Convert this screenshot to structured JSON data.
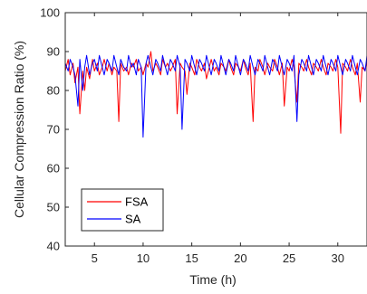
{
  "chart_data": {
    "type": "line",
    "title": "",
    "xlabel": "Time (h)",
    "ylabel": "Cellular Compression Ratio (%)",
    "xlim": [
      2,
      33
    ],
    "ylim": [
      40,
      100
    ],
    "xticks": [
      5,
      10,
      15,
      20,
      25,
      30
    ],
    "yticks": [
      40,
      50,
      60,
      70,
      80,
      90,
      100
    ],
    "grid": false,
    "legend_position": "bottom-left",
    "series": [
      {
        "name": "FSA",
        "color": "#ff0000",
        "x": [
          2.0,
          2.3,
          2.5,
          2.8,
          3.0,
          3.3,
          3.5,
          3.8,
          4.0,
          4.2,
          4.5,
          4.8,
          5.0,
          5.3,
          5.5,
          5.8,
          6.0,
          6.3,
          6.5,
          6.8,
          7.0,
          7.3,
          7.5,
          7.7,
          8.0,
          8.3,
          8.5,
          8.8,
          9.0,
          9.3,
          9.5,
          9.8,
          10.0,
          10.3,
          10.5,
          10.8,
          11.0,
          11.3,
          11.5,
          11.8,
          12.0,
          12.3,
          12.5,
          12.8,
          13.0,
          13.3,
          13.5,
          13.8,
          14.0,
          14.3,
          14.5,
          14.8,
          15.0,
          15.3,
          15.5,
          15.8,
          16.0,
          16.3,
          16.5,
          16.8,
          17.0,
          17.3,
          17.5,
          17.8,
          18.0,
          18.3,
          18.5,
          18.8,
          19.0,
          19.3,
          19.5,
          19.8,
          20.0,
          20.3,
          20.5,
          20.8,
          21.0,
          21.3,
          21.5,
          21.8,
          22.0,
          22.3,
          22.5,
          22.8,
          23.0,
          23.3,
          23.5,
          23.8,
          24.0,
          24.3,
          24.5,
          24.8,
          25.0,
          25.3,
          25.5,
          25.8,
          26.0,
          26.3,
          26.5,
          26.8,
          27.0,
          27.3,
          27.5,
          27.8,
          28.0,
          28.3,
          28.5,
          28.8,
          29.0,
          29.3,
          29.5,
          29.8,
          30.0,
          30.3,
          30.5,
          30.8,
          31.0,
          31.3,
          31.5,
          31.8,
          32.0,
          32.3,
          32.5,
          32.8,
          33.0
        ],
        "y": [
          85,
          88,
          84,
          87,
          82,
          86,
          74,
          85,
          80,
          86,
          83,
          88,
          85,
          87,
          84,
          86,
          88,
          85,
          87,
          84,
          86,
          85,
          72,
          87,
          85,
          86,
          84,
          87,
          86,
          88,
          85,
          86,
          84,
          87,
          86,
          90,
          85,
          87,
          86,
          84,
          88,
          86,
          87,
          85,
          86,
          88,
          74,
          87,
          86,
          85,
          79,
          87,
          86,
          84,
          88,
          86,
          85,
          87,
          83,
          86,
          88,
          85,
          86,
          84,
          87,
          86,
          85,
          88,
          86,
          84,
          87,
          86,
          85,
          88,
          86,
          84,
          87,
          72,
          86,
          85,
          88,
          86,
          84,
          87,
          86,
          85,
          88,
          86,
          84,
          87,
          76,
          86,
          85,
          88,
          86,
          77,
          87,
          86,
          85,
          88,
          86,
          84,
          87,
          86,
          85,
          88,
          86,
          84,
          87,
          86,
          85,
          88,
          86,
          69,
          87,
          86,
          85,
          88,
          86,
          84,
          87,
          77,
          86,
          85,
          88
        ]
      },
      {
        "name": "SA",
        "color": "#0000ff",
        "x": [
          2.0,
          2.3,
          2.5,
          2.8,
          3.0,
          3.3,
          3.5,
          3.8,
          4.0,
          4.2,
          4.5,
          4.8,
          5.0,
          5.3,
          5.5,
          5.8,
          6.0,
          6.3,
          6.5,
          6.8,
          7.0,
          7.3,
          7.5,
          7.7,
          8.0,
          8.3,
          8.5,
          8.8,
          9.0,
          9.3,
          9.5,
          9.8,
          10.0,
          10.3,
          10.5,
          10.8,
          11.0,
          11.3,
          11.5,
          11.8,
          12.0,
          12.3,
          12.5,
          12.8,
          13.0,
          13.3,
          13.5,
          13.8,
          14.0,
          14.3,
          14.5,
          14.8,
          15.0,
          15.3,
          15.5,
          15.8,
          16.0,
          16.3,
          16.5,
          16.8,
          17.0,
          17.3,
          17.5,
          17.8,
          18.0,
          18.3,
          18.5,
          18.8,
          19.0,
          19.3,
          19.5,
          19.8,
          20.0,
          20.3,
          20.5,
          20.8,
          21.0,
          21.3,
          21.5,
          21.8,
          22.0,
          22.3,
          22.5,
          22.8,
          23.0,
          23.3,
          23.5,
          23.8,
          24.0,
          24.3,
          24.5,
          24.8,
          25.0,
          25.3,
          25.5,
          25.8,
          26.0,
          26.3,
          26.5,
          26.8,
          27.0,
          27.3,
          27.5,
          27.8,
          28.0,
          28.3,
          28.5,
          28.8,
          29.0,
          29.3,
          29.5,
          29.8,
          30.0,
          30.3,
          30.5,
          30.8,
          31.0,
          31.3,
          31.5,
          31.8,
          32.0,
          32.3,
          32.5,
          32.8,
          33.0
        ],
        "y": [
          87,
          85,
          88,
          86,
          84,
          76,
          88,
          80,
          86,
          89,
          84,
          87,
          88,
          85,
          89,
          86,
          84,
          88,
          87,
          85,
          89,
          86,
          84,
          88,
          86,
          85,
          89,
          86,
          87,
          84,
          88,
          86,
          68,
          87,
          89,
          86,
          84,
          88,
          87,
          85,
          89,
          86,
          84,
          88,
          87,
          85,
          89,
          86,
          70,
          88,
          87,
          85,
          89,
          86,
          84,
          88,
          87,
          85,
          89,
          86,
          84,
          88,
          87,
          85,
          89,
          86,
          84,
          88,
          87,
          85,
          89,
          86,
          84,
          88,
          87,
          85,
          89,
          86,
          84,
          88,
          87,
          85,
          89,
          86,
          84,
          88,
          87,
          85,
          89,
          86,
          84,
          88,
          87,
          85,
          89,
          72,
          84,
          88,
          87,
          85,
          89,
          86,
          84,
          88,
          87,
          85,
          89,
          86,
          84,
          88,
          87,
          85,
          89,
          86,
          84,
          88,
          87,
          85,
          89,
          86,
          84,
          88,
          87,
          85,
          89
        ]
      }
    ]
  }
}
